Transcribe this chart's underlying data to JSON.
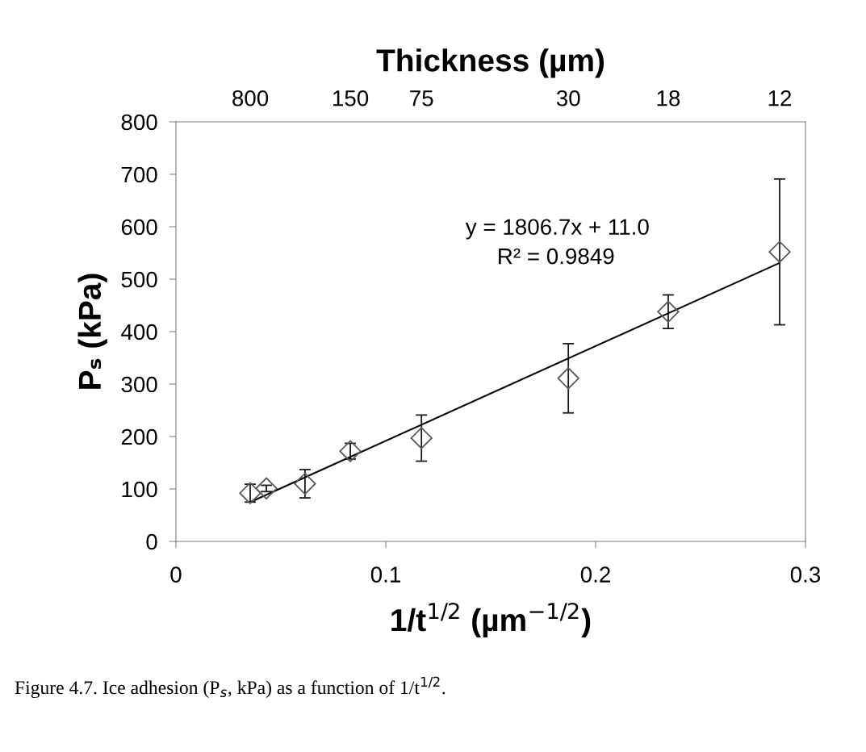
{
  "chart_data": {
    "type": "scatter",
    "xlabel": "1/t$^{1/2}$ (µm$^{−1/2}$)",
    "ylabel": "Pₛ (kPa)",
    "x2label": "Thickness (µm)",
    "xlim": [
      0,
      0.3
    ],
    "xticks": [
      0,
      0.1,
      0.2,
      0.3
    ],
    "ylim": [
      0,
      800
    ],
    "yticks": [
      0,
      100,
      200,
      300,
      400,
      500,
      600,
      700,
      800
    ],
    "grid": false,
    "legend": false,
    "series": [
      {
        "marker": "diamond",
        "color": "#595959",
        "x": [
          0.0354,
          0.0431,
          0.0615,
          0.0831,
          0.117,
          0.187,
          0.2346,
          0.2877
        ],
        "values": [
          92,
          101,
          110,
          172,
          197,
          311,
          438,
          552
        ],
        "errors": [
          17,
          6,
          27,
          15,
          44,
          66,
          32,
          139
        ]
      },
      {
        "type": "line",
        "color": "#000000",
        "x": [
          0.0354,
          0.2877
        ],
        "values": [
          75,
          531
        ]
      }
    ],
    "annotations": [
      "800",
      "150",
      "75",
      "30",
      "18",
      "12",
      "y = 1806.7x + 11.0",
      "R² = 0.9849",
      "Figure 4.7. Ice adhesion (P$_{s}$, kPa) as a function of 1/t$^{1/2}$."
    ]
  }
}
